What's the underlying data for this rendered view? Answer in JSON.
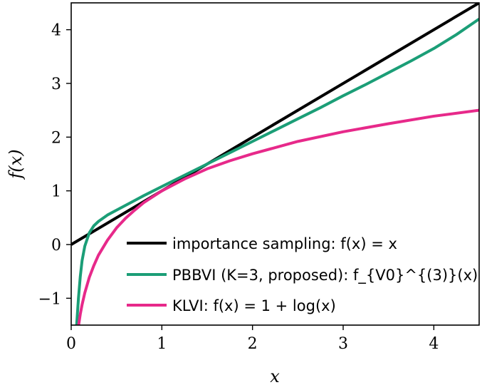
{
  "chart_data": {
    "type": "line",
    "title": "",
    "xlabel": "x",
    "ylabel": "f(x)",
    "xlim": [
      0,
      4.5
    ],
    "ylim": [
      -1.5,
      4.5
    ],
    "xticks": [
      0,
      1,
      2,
      3,
      4
    ],
    "yticks": [
      -1,
      0,
      1,
      2,
      3,
      4
    ],
    "xtick_labels": [
      "0",
      "1",
      "2",
      "3",
      "4"
    ],
    "ytick_labels": [
      "−1",
      "0",
      "1",
      "2",
      "3",
      "4"
    ],
    "grid": false,
    "legend_position": "lower-right",
    "series": [
      {
        "name": "importance sampling: f(x) = x",
        "color": "#000000",
        "x": [
          0,
          4.5
        ],
        "y": [
          0,
          4.5
        ]
      },
      {
        "name": "PBBVI (K=3, proposed): f_{V0}^{(3)}(x)",
        "color": "#1b9e77",
        "x": [
          0.06,
          0.08,
          0.1,
          0.12,
          0.15,
          0.2,
          0.25,
          0.3,
          0.4,
          0.5,
          0.6,
          0.7,
          0.8,
          0.9,
          1.0,
          1.25,
          1.5,
          1.75,
          2.0,
          2.25,
          2.5,
          2.75,
          3.0,
          3.25,
          3.5,
          3.75,
          4.0,
          4.25,
          4.5
        ],
        "y": [
          -1.5,
          -1.0,
          -0.6,
          -0.3,
          -0.03,
          0.22,
          0.35,
          0.43,
          0.55,
          0.64,
          0.73,
          0.82,
          0.91,
          0.995,
          1.08,
          1.29,
          1.5,
          1.71,
          1.92,
          2.13,
          2.34,
          2.55,
          2.77,
          2.98,
          3.2,
          3.42,
          3.65,
          3.91,
          4.2
        ]
      },
      {
        "name": "KLVI: f(x) = 1 + log(x)",
        "color": "#e7298a",
        "x": [
          0.082,
          0.1,
          0.12,
          0.15,
          0.2,
          0.25,
          0.3,
          0.4,
          0.5,
          0.6,
          0.7,
          0.8,
          0.9,
          1.0,
          1.25,
          1.5,
          1.75,
          2.0,
          2.5,
          3.0,
          3.5,
          4.0,
          4.5
        ],
        "y": [
          -1.5,
          -1.3,
          -1.12,
          -0.9,
          -0.61,
          -0.39,
          -0.2,
          0.08,
          0.31,
          0.49,
          0.64,
          0.78,
          0.89,
          1.0,
          1.22,
          1.41,
          1.56,
          1.69,
          1.92,
          2.1,
          2.25,
          2.39,
          2.5
        ]
      }
    ]
  }
}
